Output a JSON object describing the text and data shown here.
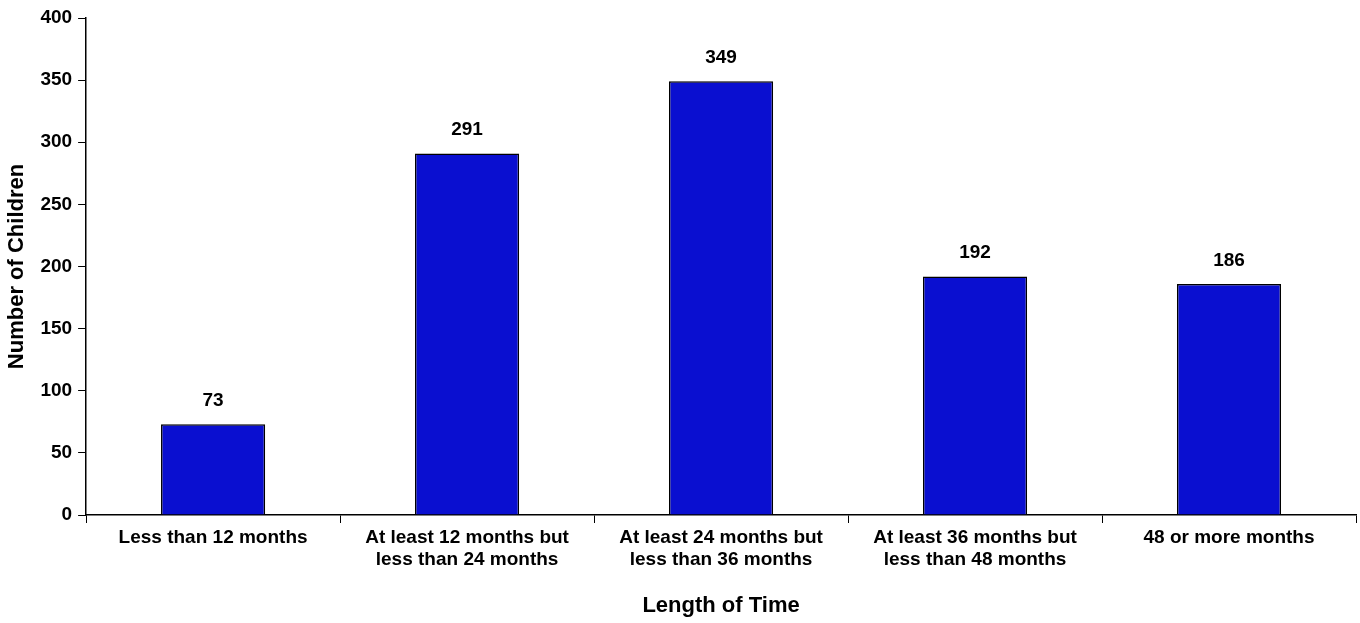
{
  "chart_data": {
    "type": "bar",
    "xlabel": "Length of Time",
    "ylabel": "Number of Children",
    "categories": [
      "Less than 12 months",
      "At least 12 months but less than 24 months",
      "At least 24 months but less than 36 months",
      "At least 36 months but less than 48 months",
      "48 or more months"
    ],
    "values": [
      73,
      291,
      349,
      192,
      186
    ],
    "color": "#0a0fd0",
    "ylim": [
      0,
      400
    ],
    "yticks": [
      0,
      50,
      100,
      150,
      200,
      250,
      300,
      350,
      400
    ],
    "grid": false,
    "legend": false,
    "data_labels": true
  }
}
